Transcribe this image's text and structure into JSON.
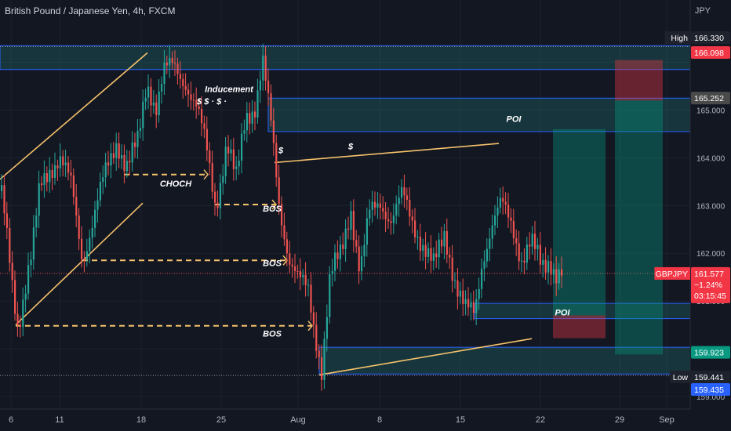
{
  "header": {
    "title": "British Pound / Japanese Yen, 4h, FXCM",
    "currency": "JPY"
  },
  "colors": {
    "background": "#131722",
    "grid": "#1e222d",
    "up": "#26a69a",
    "down": "#ef5350",
    "zone": "#2962ff",
    "zone_fill": "rgba(38,166,154,0.22)",
    "trend": "#f5c26b",
    "dash": "#f5c26b",
    "label": "#ffffff"
  },
  "chart_data": {
    "type": "candlestick",
    "y_axis": {
      "ylim": [
        158.85,
        166.65
      ],
      "ticks": [
        {
          "v": 166.0,
          "label": ""
        },
        {
          "v": 165.0,
          "label": "165.000"
        },
        {
          "v": 164.0,
          "label": "164.000"
        },
        {
          "v": 163.0,
          "label": "163.000"
        },
        {
          "v": 162.0,
          "label": "162.000"
        },
        {
          "v": 161.0,
          "label": "161.000"
        },
        {
          "v": 160.0,
          "label": "160.000"
        },
        {
          "v": 159.0,
          "label": "159.000"
        }
      ]
    },
    "x_axis": {
      "ticks": [
        "6",
        "11",
        "18",
        "25",
        "Aug",
        "8",
        "15",
        "22",
        "29",
        "Sep"
      ]
    },
    "price_labels": [
      {
        "name": "high-label",
        "tag": "High",
        "value": "166.330",
        "v": 166.33,
        "color": "#1e222d"
      },
      {
        "name": "stop-label",
        "tag": "",
        "value": "166.098",
        "v": 166.098,
        "color": "#f23645"
      },
      {
        "name": "entry-label",
        "tag": "",
        "value": "165.252",
        "v": 165.252,
        "color": "#4a4a4a"
      },
      {
        "name": "current-price-label",
        "tag": "GBPJPY",
        "value": "161.577",
        "v": 161.577,
        "color": "#f23645",
        "sub1": "−1.24%",
        "sub2": "03:15:45"
      },
      {
        "name": "target-label",
        "tag": "",
        "value": "159.923",
        "v": 159.923,
        "color": "#089981"
      },
      {
        "name": "low-label",
        "tag": "Low",
        "value": "159.441",
        "v": 159.441,
        "color": "#1e222d"
      },
      {
        "name": "low-close-label",
        "tag": "",
        "value": "159.435",
        "v": 159.435,
        "color": "#2962ff"
      }
    ],
    "zones": [
      {
        "name": "supply-zone-top",
        "y1": 166.35,
        "y2": 165.85,
        "x1": 0,
        "x2": 880
      },
      {
        "name": "poi-zone-upper",
        "y1": 165.25,
        "y2": 164.55,
        "x1": 342,
        "x2": 880
      },
      {
        "name": "poi-zone-lower",
        "y1": 160.95,
        "y2": 160.63,
        "x1": 605,
        "x2": 880
      },
      {
        "name": "demand-zone-bottom",
        "y1": 160.03,
        "y2": 159.47,
        "x1": 407,
        "x2": 880
      }
    ],
    "positions": [
      {
        "name": "long-position",
        "x1": 705,
        "x2": 772,
        "entry": 160.7,
        "target": 164.6,
        "stop": 160.22
      },
      {
        "name": "short-position",
        "x1": 784,
        "x2": 845,
        "entry": 165.2,
        "target": 159.88,
        "stop": 166.05
      }
    ],
    "annotations": [
      {
        "text": "Inducement",
        "x": 292,
        "v": 165.38
      },
      {
        "text": "$  $ · $ ·",
        "x": 270,
        "v": 165.12
      },
      {
        "text": "POI",
        "x": 655,
        "v": 164.75
      },
      {
        "text": "$",
        "x": 358,
        "v": 164.1
      },
      {
        "text": "$",
        "x": 447,
        "v": 164.18
      },
      {
        "text": "CHOCH",
        "x": 224,
        "v": 163.4
      },
      {
        "text": "BOS",
        "x": 347,
        "v": 162.87
      },
      {
        "text": "BOS",
        "x": 347,
        "v": 161.73
      },
      {
        "text": "BOS",
        "x": 347,
        "v": 160.25
      },
      {
        "text": "POI",
        "x": 717,
        "v": 160.7
      }
    ],
    "candles_series": [
      {
        "t": 0,
        "c": 163.3
      },
      {
        "t": 8,
        "c": 162.3
      },
      {
        "t": 16,
        "c": 161.2
      },
      {
        "t": 22,
        "c": 160.5
      },
      {
        "t": 30,
        "c": 161.2
      },
      {
        "t": 40,
        "c": 162.0
      },
      {
        "t": 50,
        "c": 163.4
      },
      {
        "t": 62,
        "c": 163.8
      },
      {
        "t": 75,
        "c": 164.0
      },
      {
        "t": 90,
        "c": 163.4
      },
      {
        "t": 104,
        "c": 161.9
      },
      {
        "t": 118,
        "c": 162.7
      },
      {
        "t": 132,
        "c": 163.6
      },
      {
        "t": 148,
        "c": 164.4
      },
      {
        "t": 160,
        "c": 163.8
      },
      {
        "t": 175,
        "c": 164.3
      },
      {
        "t": 186,
        "c": 165.6
      },
      {
        "t": 198,
        "c": 165.1
      },
      {
        "t": 208,
        "c": 165.8
      },
      {
        "t": 220,
        "c": 165.9
      },
      {
        "t": 236,
        "c": 165.6
      },
      {
        "t": 250,
        "c": 165.0
      },
      {
        "t": 262,
        "c": 164.2
      },
      {
        "t": 274,
        "c": 163.0
      },
      {
        "t": 288,
        "c": 164.3
      },
      {
        "t": 300,
        "c": 163.5
      },
      {
        "t": 312,
        "c": 164.9
      },
      {
        "t": 324,
        "c": 165.1
      },
      {
        "t": 334,
        "c": 166.0
      },
      {
        "t": 345,
        "c": 164.6
      },
      {
        "t": 355,
        "c": 163.0
      },
      {
        "t": 368,
        "c": 161.9
      },
      {
        "t": 380,
        "c": 161.4
      },
      {
        "t": 392,
        "c": 161.2
      },
      {
        "t": 400,
        "c": 160.4
      },
      {
        "t": 409,
        "c": 159.6
      },
      {
        "t": 420,
        "c": 161.5
      },
      {
        "t": 434,
        "c": 162.0
      },
      {
        "t": 446,
        "c": 163.0
      },
      {
        "t": 458,
        "c": 161.6
      },
      {
        "t": 470,
        "c": 162.8
      },
      {
        "t": 484,
        "c": 163.1
      },
      {
        "t": 498,
        "c": 162.7
      },
      {
        "t": 512,
        "c": 163.2
      },
      {
        "t": 524,
        "c": 162.7
      },
      {
        "t": 538,
        "c": 162.2
      },
      {
        "t": 552,
        "c": 161.7
      },
      {
        "t": 566,
        "c": 162.4
      },
      {
        "t": 580,
        "c": 161.4
      },
      {
        "t": 592,
        "c": 160.8
      },
      {
        "t": 604,
        "c": 160.7
      },
      {
        "t": 614,
        "c": 161.9
      },
      {
        "t": 626,
        "c": 162.6
      },
      {
        "t": 638,
        "c": 163.0
      },
      {
        "t": 652,
        "c": 162.6
      },
      {
        "t": 664,
        "c": 161.9
      },
      {
        "t": 676,
        "c": 162.2
      },
      {
        "t": 690,
        "c": 161.7
      },
      {
        "t": 700,
        "c": 161.9
      },
      {
        "t": 708,
        "c": 161.6
      },
      {
        "t": 716,
        "c": 161.58
      }
    ]
  }
}
